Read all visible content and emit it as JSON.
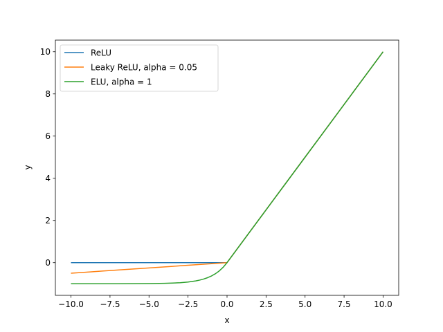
{
  "chart_data": {
    "type": "line",
    "title": "",
    "xlabel": "x",
    "ylabel": "y",
    "xlim": [
      -11,
      11
    ],
    "ylim": [
      -1.55,
      10.55
    ],
    "grid": false,
    "legend_position": "top-left",
    "x_ticks": [
      -10.0,
      -7.5,
      -5.0,
      -2.5,
      0.0,
      2.5,
      5.0,
      7.5,
      10.0
    ],
    "x_tick_labels": [
      "−10.0",
      "−7.5",
      "−5.0",
      "−2.5",
      "0.0",
      "2.5",
      "5.0",
      "7.5",
      "10.0"
    ],
    "y_ticks": [
      0,
      2,
      4,
      6,
      8,
      10
    ],
    "y_tick_labels": [
      "0",
      "2",
      "4",
      "6",
      "8",
      "10"
    ],
    "x": [
      -10,
      -9,
      -8,
      -7,
      -6,
      -5,
      -4,
      -3.5,
      -3,
      -2.5,
      -2,
      -1.75,
      -1.5,
      -1.25,
      -1,
      -0.75,
      -0.5,
      -0.25,
      0,
      0.5,
      1,
      2,
      3,
      4,
      5,
      6,
      7,
      8,
      9,
      10
    ],
    "series": [
      {
        "name": "ReLU",
        "color": "#1f77b4",
        "values": [
          0,
          0,
          0,
          0,
          0,
          0,
          0,
          0,
          0,
          0,
          0,
          0,
          0,
          0,
          0,
          0,
          0,
          0,
          0,
          0.5,
          1,
          2,
          3,
          4,
          5,
          6,
          7,
          8,
          9,
          10
        ]
      },
      {
        "name": "Leaky ReLU, alpha = 0.05",
        "color": "#ff7f0e",
        "values": [
          -0.5,
          -0.45,
          -0.4,
          -0.35,
          -0.3,
          -0.25,
          -0.2,
          -0.175,
          -0.15,
          -0.125,
          -0.1,
          -0.0875,
          -0.075,
          -0.0625,
          -0.05,
          -0.0375,
          -0.025,
          -0.0125,
          0,
          0.5,
          1,
          2,
          3,
          4,
          5,
          6,
          7,
          8,
          9,
          10
        ]
      },
      {
        "name": "ELU, alpha = 1",
        "color": "#2ca02c",
        "values": [
          -1.0,
          -0.9999,
          -0.9997,
          -0.9991,
          -0.9975,
          -0.9933,
          -0.9817,
          -0.9698,
          -0.9502,
          -0.9179,
          -0.8647,
          -0.8262,
          -0.7769,
          -0.7135,
          -0.6321,
          -0.5276,
          -0.3935,
          -0.2212,
          0,
          0.5,
          1,
          2,
          3,
          4,
          5,
          6,
          7,
          8,
          9,
          10
        ]
      }
    ]
  }
}
